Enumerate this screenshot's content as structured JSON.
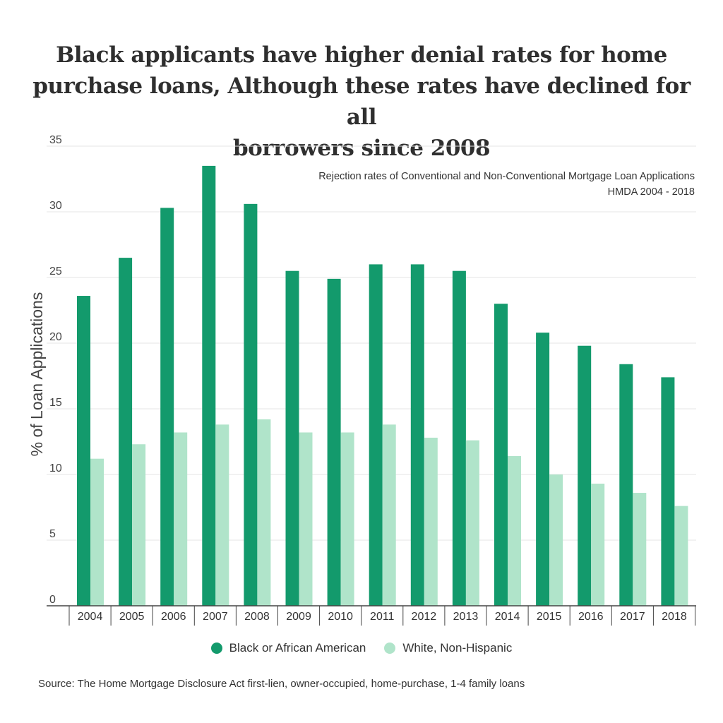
{
  "title_lines": [
    "Black applicants have higher denial rates for home",
    "purchase loans, Although these rates have declined for all",
    "borrowers since 2008"
  ],
  "colors": {
    "black": "#139a6c",
    "white": "#b0e4ca",
    "grid": "#e4e4e4",
    "axis": "#444444"
  },
  "source": "Source: The Home Mortgage Disclosure Act first-lien, owner-occupied, home-purchase, 1-4 family loans",
  "chart_data": {
    "type": "bar",
    "title": "Black applicants have higher denial rates for home purchase loans, Although these rates have declined for all borrowers since 2008",
    "subtitle_lines": [
      "Rejection rates of Conventional and Non-Conventional Mortgage Loan Applications",
      "HMDA 2004 - 2018"
    ],
    "ylabel": "% of Loan Applications",
    "xlabel": "",
    "ylim": [
      0,
      35
    ],
    "yticks": [
      0,
      5,
      10,
      15,
      20,
      25,
      30,
      35
    ],
    "grid": true,
    "legend_position": "bottom",
    "categories": [
      "2004",
      "2005",
      "2006",
      "2007",
      "2008",
      "2009",
      "2010",
      "2011",
      "2012",
      "2013",
      "2014",
      "2015",
      "2016",
      "2017",
      "2018"
    ],
    "series": [
      {
        "name": "Black or African American",
        "values": [
          23.6,
          26.5,
          30.3,
          33.5,
          30.6,
          25.5,
          24.9,
          26.0,
          26.0,
          25.5,
          23.0,
          20.8,
          19.8,
          18.4,
          17.4
        ]
      },
      {
        "name": "White, Non-Hispanic",
        "values": [
          11.2,
          12.3,
          13.2,
          13.8,
          14.2,
          13.2,
          13.2,
          13.8,
          12.8,
          12.6,
          11.4,
          10.0,
          9.3,
          8.6,
          7.6
        ]
      }
    ]
  }
}
